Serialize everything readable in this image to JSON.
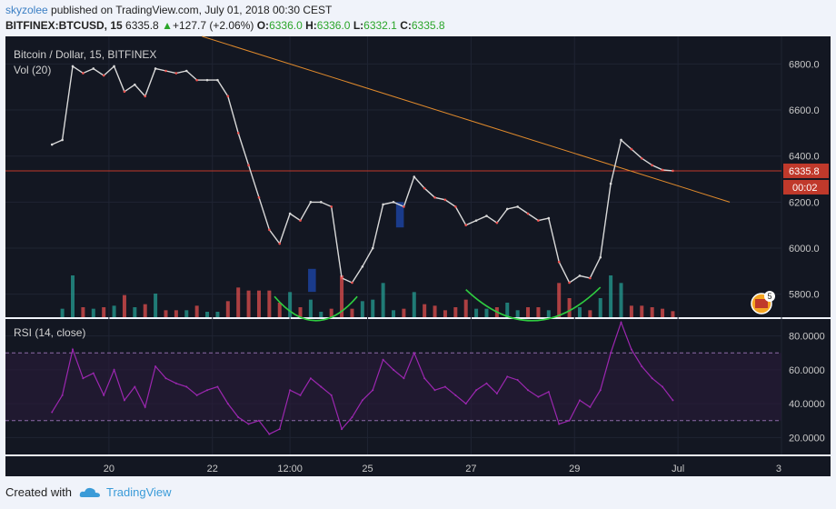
{
  "header": {
    "user": "skyzolee",
    "published": "published on TradingView.com, July 01, 2018 00:30 CEST",
    "symbol": "BITFINEX:BTCUSD, 15",
    "last": "6335.8",
    "change": "+127.7 (+2.06%)",
    "o_label": "O:",
    "o": "6336.0",
    "h_label": "H:",
    "h": "6336.0",
    "l_label": "L:",
    "l": "6332.1",
    "c_label": "C:",
    "c": "6335.8"
  },
  "footer": {
    "created": "Created with",
    "brand": "TradingView"
  },
  "colors": {
    "background": "#131722",
    "up": "#26a69a",
    "down": "#ef5350",
    "candle_up": "#d9d9d9",
    "rsi": "#9c27b0",
    "trendline": "#e08a2c",
    "price_line": "#c0392b",
    "arc": "#2ecc40",
    "highlight": "#1e4bb8"
  },
  "chart_data": [
    {
      "type": "line",
      "title": "Bitcoin / Dollar, 15, BITFINEX",
      "subtitle": "Vol (20)",
      "ylim": [
        5700,
        6920
      ],
      "y_ticks": [
        "6800.0",
        "6600.0",
        "6400.0",
        "6200.0",
        "6000.0",
        "5800.0"
      ],
      "x_ticks": [
        "20",
        "22",
        "12:00",
        "25",
        "27",
        "29",
        "Jul",
        "3"
      ],
      "price_label": "6335.8",
      "countdown": "00:02",
      "events_badge": "5",
      "x": [
        18.9,
        19.1,
        19.3,
        19.5,
        19.7,
        19.9,
        20.1,
        20.3,
        20.5,
        20.7,
        20.9,
        21.1,
        21.3,
        21.5,
        21.7,
        21.9,
        22.1,
        22.3,
        22.5,
        22.7,
        22.9,
        23.1,
        23.3,
        23.5,
        23.7,
        23.9,
        24.1,
        24.3,
        24.5,
        24.7,
        24.9,
        25.1,
        25.3,
        25.5,
        25.7,
        25.9,
        26.1,
        26.3,
        26.5,
        26.7,
        26.9,
        27.1,
        27.3,
        27.5,
        27.7,
        27.9,
        28.1,
        28.3,
        28.5,
        28.7,
        28.9,
        29.1,
        29.3,
        29.5,
        29.7,
        29.9,
        30.1,
        30.3,
        30.5,
        30.7,
        30.9
      ],
      "series": [
        {
          "values": [
            6450,
            6470,
            6790,
            6760,
            6780,
            6750,
            6790,
            6680,
            6710,
            6660,
            6780,
            6770,
            6760,
            6770,
            6730,
            6730,
            6730,
            6660,
            6500,
            6360,
            6220,
            6080,
            6020,
            6150,
            6120,
            6200,
            6200,
            6180,
            5870,
            5850,
            5920,
            6000,
            6190,
            6200,
            6180,
            6310,
            6260,
            6220,
            6210,
            6180,
            6100,
            6120,
            6140,
            6110,
            6170,
            6180,
            6150,
            6120,
            6130,
            5940,
            5850,
            5880,
            5870,
            5960,
            6280,
            6470,
            6430,
            6390,
            6360,
            6340,
            6336
          ]
        }
      ],
      "trendline": {
        "x": [
          21.8,
          32.0
        ],
        "y": [
          6920,
          6200
        ]
      },
      "price_line": 6335.8,
      "arcs": [
        {
          "x": [
            23.2,
            24.0,
            24.8
          ],
          "y": [
            5790,
            5685,
            5790
          ]
        },
        {
          "x": [
            26.9,
            28.2,
            29.5
          ],
          "y": [
            5820,
            5685,
            5830
          ]
        }
      ],
      "highlights": [
        {
          "x0": 23.85,
          "x1": 24.0,
          "y0": 5810,
          "y1": 5910
        },
        {
          "x0": 25.55,
          "x1": 25.7,
          "y0": 6090,
          "y1": 6200
        }
      ]
    },
    {
      "type": "line",
      "title": "RSI (14, close)",
      "ylim": [
        10,
        90
      ],
      "y_ticks": [
        "80.0000",
        "60.0000",
        "40.0000",
        "20.0000"
      ],
      "bands": [
        30,
        70
      ],
      "x": [
        18.9,
        19.1,
        19.3,
        19.5,
        19.7,
        19.9,
        20.1,
        20.3,
        20.5,
        20.7,
        20.9,
        21.1,
        21.3,
        21.5,
        21.7,
        21.9,
        22.1,
        22.3,
        22.5,
        22.7,
        22.9,
        23.1,
        23.3,
        23.5,
        23.7,
        23.9,
        24.1,
        24.3,
        24.5,
        24.7,
        24.9,
        25.1,
        25.3,
        25.5,
        25.7,
        25.9,
        26.1,
        26.3,
        26.5,
        26.7,
        26.9,
        27.1,
        27.3,
        27.5,
        27.7,
        27.9,
        28.1,
        28.3,
        28.5,
        28.7,
        28.9,
        29.1,
        29.3,
        29.5,
        29.7,
        29.9,
        30.1,
        30.3,
        30.5,
        30.7,
        30.9
      ],
      "series": [
        {
          "values": [
            35,
            45,
            72,
            55,
            58,
            45,
            60,
            42,
            50,
            38,
            62,
            55,
            52,
            50,
            45,
            48,
            50,
            40,
            32,
            28,
            30,
            22,
            25,
            48,
            45,
            55,
            50,
            45,
            25,
            32,
            42,
            48,
            66,
            60,
            55,
            70,
            55,
            48,
            50,
            45,
            40,
            48,
            52,
            46,
            56,
            54,
            48,
            44,
            47,
            28,
            30,
            42,
            38,
            48,
            70,
            88,
            72,
            62,
            55,
            50,
            42
          ]
        }
      ]
    }
  ]
}
